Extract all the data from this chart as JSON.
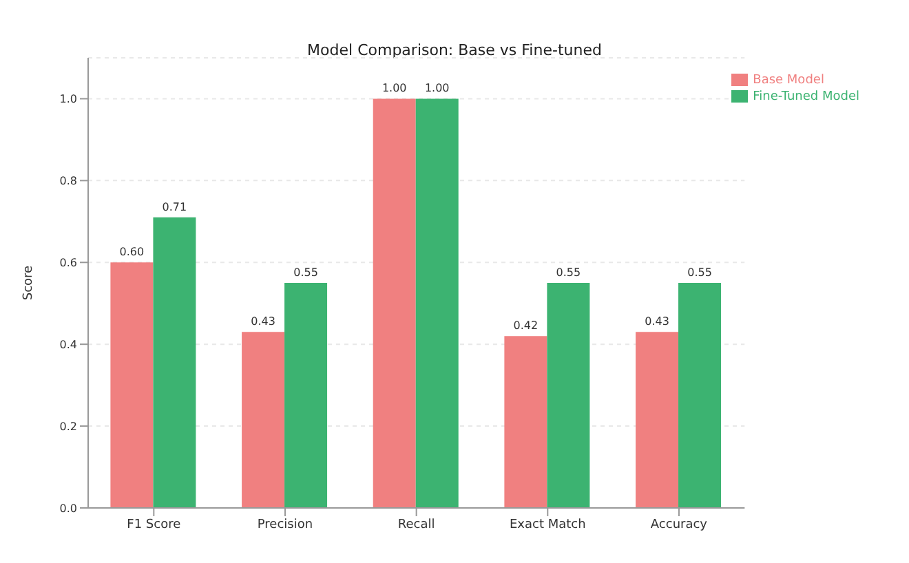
{
  "chart_data": {
    "type": "bar",
    "title": "Model Comparison: Base vs Fine-tuned",
    "ylabel": "Score",
    "categories": [
      "F1 Score",
      "Precision",
      "Recall",
      "Exact Match",
      "Accuracy"
    ],
    "series": [
      {
        "name": "Base Model",
        "color": "#f08080",
        "values": [
          0.6,
          0.43,
          1.0,
          0.42,
          0.43
        ],
        "value_labels": [
          "0.60",
          "0.43",
          "1.00",
          "0.42",
          "0.43"
        ]
      },
      {
        "name": "Fine-Tuned Model",
        "color": "#3cb371",
        "values": [
          0.71,
          0.55,
          1.0,
          0.55,
          0.55
        ],
        "value_labels": [
          "0.71",
          "0.55",
          "1.00",
          "0.55",
          "0.55"
        ]
      }
    ],
    "ylim": [
      0,
      1.1
    ],
    "yticks": [
      {
        "value": 0,
        "label": "0.0"
      },
      {
        "value": 0.2,
        "label": "0.2"
      },
      {
        "value": 0.4,
        "label": "0.4"
      },
      {
        "value": 0.6,
        "label": "0.6"
      },
      {
        "value": 0.8,
        "label": "0.8"
      },
      {
        "value": 1.0,
        "label": "1.0"
      }
    ],
    "grid": "y",
    "legend": "top right"
  }
}
